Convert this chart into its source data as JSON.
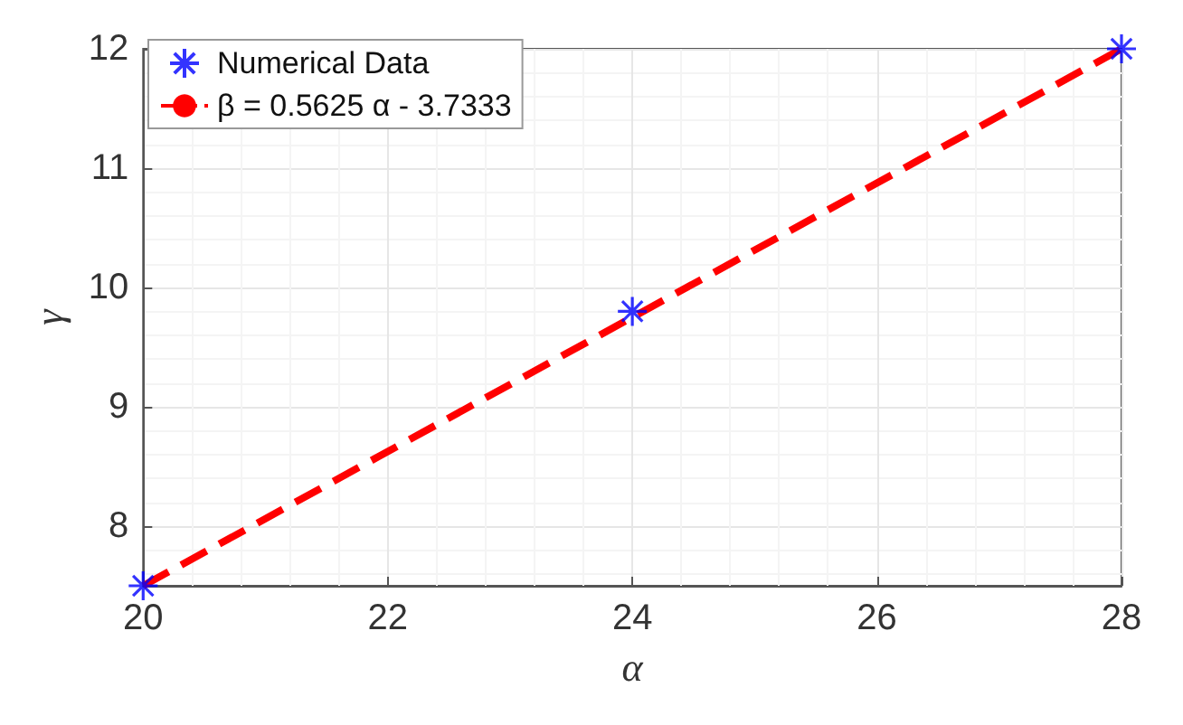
{
  "chart_data": {
    "type": "scatter",
    "xlabel": "α",
    "ylabel": "γ",
    "xlim": [
      20,
      28
    ],
    "ylim": [
      7.5,
      12
    ],
    "xticks": [
      20,
      22,
      24,
      26,
      28
    ],
    "yticks": [
      8,
      9,
      10,
      11,
      12
    ],
    "grid": true,
    "legend": "top left",
    "series": [
      {
        "name": "Numerical Data",
        "color": "#0000ff",
        "marker": "cross",
        "x": [
          20,
          24,
          28
        ],
        "values": [
          7.5,
          9.8,
          12
        ]
      },
      {
        "name": "β = 0.5625 α - 3.7333",
        "type": "line",
        "color": "#ff0000",
        "marker": "none",
        "line_style": "dashed",
        "x": [
          20,
          28
        ],
        "values": [
          7.5,
          12
        ]
      }
    ]
  }
}
